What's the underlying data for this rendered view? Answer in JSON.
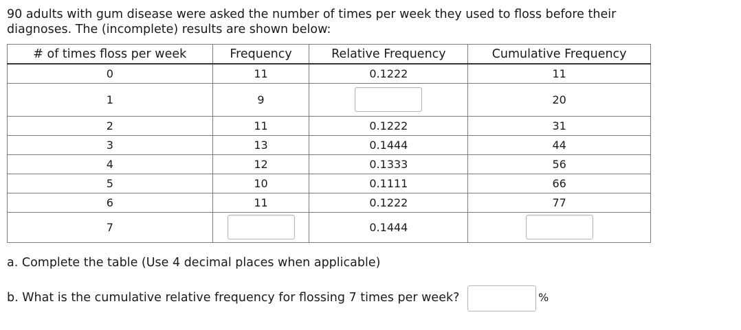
{
  "intro": {
    "line1": "90 adults with gum disease were asked the number of times per week they used to floss before their",
    "line2": "diagnoses. The (incomplete) results are shown below:"
  },
  "table": {
    "headers": [
      "# of times floss per week",
      "Frequency",
      "Relative Frequency",
      "Cumulative Frequency"
    ],
    "rows": [
      {
        "times": "0",
        "freq": "11",
        "rel": "0.1222",
        "cum": "11"
      },
      {
        "times": "1",
        "freq": "9",
        "rel": "",
        "cum": "20"
      },
      {
        "times": "2",
        "freq": "11",
        "rel": "0.1222",
        "cum": "31"
      },
      {
        "times": "3",
        "freq": "13",
        "rel": "0.1444",
        "cum": "44"
      },
      {
        "times": "4",
        "freq": "12",
        "rel": "0.1333",
        "cum": "56"
      },
      {
        "times": "5",
        "freq": "10",
        "rel": "0.1111",
        "cum": "66"
      },
      {
        "times": "6",
        "freq": "11",
        "rel": "0.1222",
        "cum": "77"
      },
      {
        "times": "7",
        "freq": "",
        "rel": "0.1444",
        "cum": ""
      }
    ]
  },
  "question_a": "a. Complete the table (Use 4 decimal places when applicable)",
  "question_b": "b. What is the cumulative relative frequency for flossing 7 times per week?",
  "percent_sign": "%"
}
